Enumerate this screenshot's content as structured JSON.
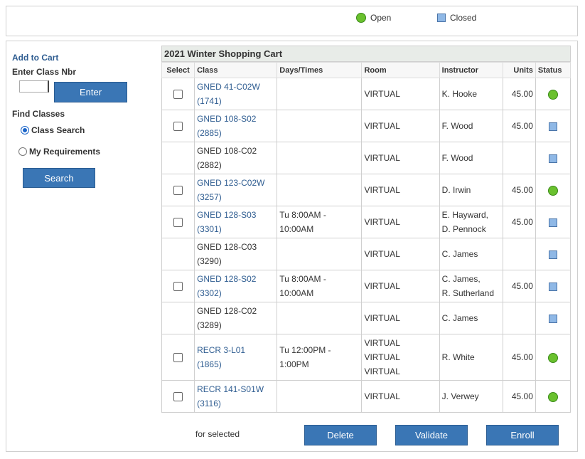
{
  "legend": {
    "open_label": "Open",
    "closed_label": "Closed",
    "open_color": "#6ac12e",
    "closed_color": "#8fb8e6"
  },
  "left_panel": {
    "add_to_cart": "Add to Cart",
    "enter_class_label": "Enter Class Nbr",
    "class_nbr_value": "",
    "enter_button": "Enter",
    "find_classes_label": "Find Classes",
    "radio_class_search": "Class Search",
    "radio_my_requirements": "My Requirements",
    "radio_selected": "class_search",
    "search_button": "Search"
  },
  "cart": {
    "title": "2021 Winter Shopping Cart",
    "columns": [
      "Select",
      "Class",
      "Days/Times",
      "Room",
      "Instructor",
      "Units",
      "Status"
    ],
    "rows": [
      {
        "select": true,
        "class_line1": "GNED 41-C02W",
        "class_line2": "(1741)",
        "link": true,
        "days1": "",
        "days2": "",
        "room": "VIRTUAL",
        "instr1": "K. Hooke",
        "instr2": "",
        "units": "45.00",
        "status": "open",
        "shade": false
      },
      {
        "select": true,
        "class_line1": "GNED 108-S02",
        "class_line2": "(2885)",
        "link": true,
        "days1": "",
        "days2": "",
        "room": "VIRTUAL",
        "instr1": "F. Wood",
        "instr2": "",
        "units": "45.00",
        "status": "closed",
        "shade": false
      },
      {
        "select": false,
        "class_line1": "GNED 108-C02",
        "class_line2": "(2882)",
        "link": false,
        "days1": "",
        "days2": "",
        "room": "VIRTUAL",
        "instr1": "F. Wood",
        "instr2": "",
        "units": "",
        "status": "closed",
        "shade": false
      },
      {
        "select": true,
        "class_line1": "GNED 123-C02W",
        "class_line2": "(3257)",
        "link": true,
        "days1": "",
        "days2": "",
        "room": "VIRTUAL",
        "instr1": "D. Irwin",
        "instr2": "",
        "units": "45.00",
        "status": "open",
        "shade": false
      },
      {
        "select": true,
        "class_line1": "GNED 128-S03",
        "class_line2": "(3301)",
        "link": true,
        "days1": "Tu 8:00AM -",
        "days2": "10:00AM",
        "room": "VIRTUAL",
        "instr1": "E. Hayward,",
        "instr2": "D. Pennock",
        "units": "45.00",
        "status": "closed",
        "shade": false
      },
      {
        "select": false,
        "class_line1": "GNED 128-C03",
        "class_line2": "(3290)",
        "link": false,
        "days1": "",
        "days2": "",
        "room": "VIRTUAL",
        "instr1": "C. James",
        "instr2": "",
        "units": "",
        "status": "closed",
        "shade": false
      },
      {
        "select": true,
        "class_line1": "GNED 128-S02",
        "class_line2": "(3302)",
        "link": true,
        "days1": "Tu 8:00AM -",
        "days2": "10:00AM",
        "room": "VIRTUAL",
        "instr1": "C. James,",
        "instr2": "R. Sutherland",
        "units": "45.00",
        "status": "closed",
        "shade": false
      },
      {
        "select": false,
        "class_line1": "GNED 128-C02",
        "class_line2": "(3289)",
        "link": false,
        "days1": "",
        "days2": "",
        "room": "VIRTUAL",
        "instr1": "C. James",
        "instr2": "",
        "units": "",
        "status": "closed",
        "shade": false
      },
      {
        "select": true,
        "class_line1": "RECR 3-L01",
        "class_line2": "(1865)",
        "link": true,
        "days1": "Tu 12:00PM -",
        "days2": "1:00PM",
        "room_lines": [
          "VIRTUAL",
          "VIRTUAL",
          "VIRTUAL"
        ],
        "room": "VIRTUAL",
        "instr1": "R. White",
        "instr2": "",
        "units": "45.00",
        "status": "open",
        "shade": false
      },
      {
        "select": true,
        "class_line1": "RECR 141-S01W",
        "class_line2": "(3116)",
        "link": true,
        "days1": "",
        "days2": "",
        "room": "VIRTUAL",
        "instr1": "J. Verwey",
        "instr2": "",
        "units": "45.00",
        "status": "open",
        "shade": false
      }
    ]
  },
  "footer": {
    "for_selected": "for selected",
    "delete_button": "Delete",
    "validate_button": "Validate",
    "enroll_button": "Enroll"
  }
}
